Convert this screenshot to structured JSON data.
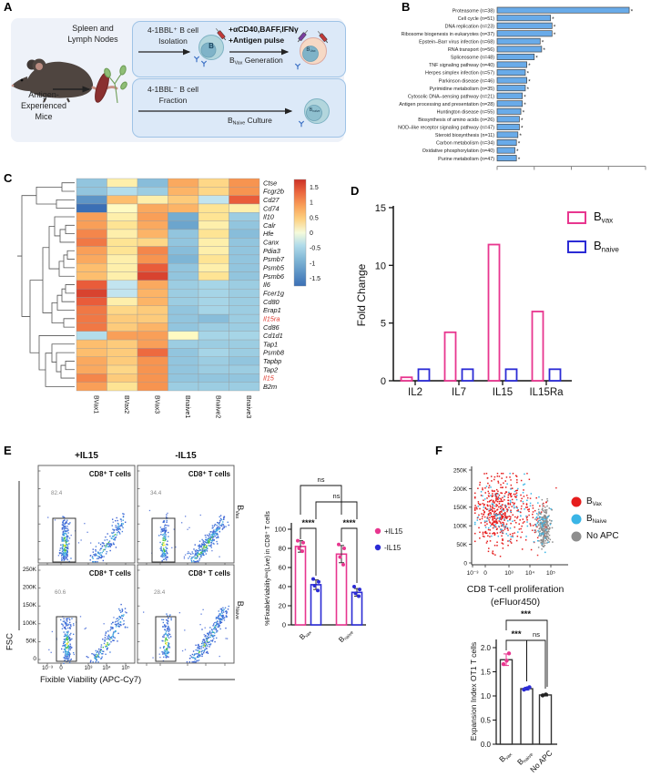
{
  "panel_labels": [
    "A",
    "B",
    "C",
    "D",
    "E",
    "F"
  ],
  "panel_a": {
    "mouse_caption_lines": [
      "Antigen-",
      "Experienced",
      "Mice"
    ],
    "organs_caption_lines": [
      "Spleen and",
      "Lymph Nodes"
    ],
    "top_box": {
      "title_line1": "4-1BBL⁺ B cell",
      "title_line2": "Isolation",
      "b_cell_label": "B",
      "stimulus_line1": "+αCD40,BAFF,IFNγ",
      "stimulus_line2": "+Antigen pulse",
      "generation_base": "B",
      "generation_sub": "Vax",
      "generation_rest": " Generation",
      "bvax_base": "B",
      "bvax_sub": "Vax"
    },
    "bottom_box": {
      "title_line1": "4-1BBL⁻ B cell",
      "title_line2": "Fraction",
      "culture_base": "B",
      "culture_sub": "Naive",
      "culture_rest": " Culture",
      "bnaive_base": "B",
      "bnaive_sub": "naive"
    }
  },
  "chart_data": [
    {
      "id": "panel_b_pathway_enrichment",
      "type": "bar",
      "orientation": "horizontal",
      "categories": [
        "Proteasome (n=38)",
        "Cell cycle (n=51)",
        "DNA replication (n=23)",
        "Ribosome biogenesis in eukaryotes (n=37)",
        "Epstein–Barr virus infection (n=68)",
        "RNA transport (n=56)",
        "Spliceosome (n=48)",
        "TNF signaling pathway (n=40)",
        "Herpes simplex infection (n=57)",
        "Parkinson disease (n=46)",
        "Pyrimidine metabolism (n=35)",
        "Cytosolic DNA–sensing pathway (n=21)",
        "Antigen processing and presentation (n=28)",
        "Huntington disease (n=55)",
        "Biosynthesis of amino acids (n=26)",
        "NOD–like receptor signaling pathway (n=47)",
        "Steroid biosynthesis (n=11)",
        "Carbon metabolism (n=34)",
        "Oxidative phosphorylation (n=40)",
        "Purine metabolism (n=47)"
      ],
      "values": [
        0.89,
        0.36,
        0.37,
        0.37,
        0.29,
        0.3,
        0.25,
        0.2,
        0.19,
        0.2,
        0.19,
        0.17,
        0.17,
        0.16,
        0.15,
        0.15,
        0.14,
        0.13,
        0.12,
        0.13
      ],
      "value_units": "relative bar length (x axis unlabeled in figure)",
      "bar_annotation": "*",
      "bar_color": "#69abe9"
    },
    {
      "id": "panel_c_gene_heatmap",
      "type": "heatmap",
      "columns": [
        "BVax1",
        "BVax2",
        "BVax3",
        "Bnaive1",
        "Bnaive2",
        "Bnaive3"
      ],
      "rows": [
        "Ctse",
        "Fcgr2b",
        "Cd27",
        "Cd74",
        "Il10",
        "Calr",
        "Hfe",
        "Canx",
        "Pdia3",
        "Psmb7",
        "Psmb5",
        "Psmb6",
        "Il6",
        "Fcer1g",
        "Cd80",
        "Erap1",
        "Il15ra",
        "Cd86",
        "Cd1d1",
        "Tap1",
        "Psmb8",
        "Tapbp",
        "Tap2",
        "Il15",
        "B2m"
      ],
      "highlighted_rows": [
        "Il15ra",
        "Il15"
      ],
      "highlight_color": "#e03a2f",
      "values": [
        [
          -0.7,
          0.2,
          -0.8,
          0.8,
          0.4,
          1.0
        ],
        [
          -0.7,
          -0.4,
          -0.6,
          0.7,
          0.4,
          1.0
        ],
        [
          -1.3,
          0.6,
          0.2,
          0.5,
          -0.3,
          1.4
        ],
        [
          -1.8,
          0.1,
          0.8,
          0.7,
          0.3,
          0.2
        ],
        [
          0.9,
          0.2,
          0.9,
          -1.0,
          0.3,
          -0.6
        ],
        [
          0.9,
          0.3,
          0.8,
          -1.1,
          0.2,
          -0.7
        ],
        [
          1.1,
          0.2,
          0.7,
          -0.7,
          0.3,
          -0.8
        ],
        [
          1.2,
          0.3,
          0.4,
          -0.7,
          0.2,
          -0.7
        ],
        [
          0.9,
          0.3,
          1.1,
          -0.8,
          0.2,
          -0.7
        ],
        [
          0.8,
          0.2,
          1.0,
          -0.9,
          0.3,
          -0.7
        ],
        [
          0.6,
          0.2,
          1.4,
          -0.7,
          0.2,
          -0.7
        ],
        [
          0.6,
          0.2,
          1.6,
          -0.7,
          0.3,
          -0.7
        ],
        [
          1.4,
          -0.3,
          0.8,
          -0.6,
          -0.5,
          -0.6
        ],
        [
          1.6,
          -0.3,
          0.7,
          -0.6,
          -0.5,
          -0.6
        ],
        [
          1.4,
          0.2,
          0.7,
          -0.6,
          -0.5,
          -0.6
        ],
        [
          1.2,
          0.4,
          0.5,
          -0.7,
          -0.5,
          -0.6
        ],
        [
          1.2,
          0.5,
          0.5,
          -0.7,
          -0.8,
          -0.6
        ],
        [
          1.2,
          0.5,
          0.7,
          -0.7,
          -0.6,
          -0.6
        ],
        [
          -0.4,
          0.9,
          0.9,
          0.1,
          -0.5,
          -0.5
        ],
        [
          0.6,
          0.5,
          0.9,
          -0.6,
          -0.6,
          -0.6
        ],
        [
          0.6,
          0.5,
          1.3,
          -0.7,
          -0.5,
          -0.6
        ],
        [
          0.8,
          0.5,
          1.0,
          -0.7,
          -0.6,
          -0.7
        ],
        [
          0.8,
          0.4,
          1.0,
          -0.7,
          -0.6,
          -0.6
        ],
        [
          1.1,
          0.5,
          1.0,
          -0.7,
          -0.7,
          -0.7
        ],
        [
          0.9,
          0.3,
          1.0,
          -0.6,
          -0.6,
          -0.6
        ]
      ],
      "colorbar_ticks": [
        "1.5",
        "1",
        "0.5",
        "0",
        "-0.5",
        "-1",
        "-1.5"
      ],
      "scale_range": [
        -1.75,
        1.75
      ]
    },
    {
      "id": "panel_d_fold_change",
      "type": "bar",
      "categories": [
        "IL2",
        "IL7",
        "IL15",
        "IL15Ra"
      ],
      "series": [
        {
          "name_base": "B",
          "name_sub": "vax",
          "color": "#e8368f",
          "values": [
            0.3,
            4.2,
            11.8,
            6.0
          ]
        },
        {
          "name_base": "B",
          "name_sub": "naive",
          "color": "#2b2bd5",
          "values": [
            1.0,
            1.0,
            1.0,
            1.0
          ]
        }
      ],
      "ylabel": "Fold Change",
      "ylim": [
        0,
        15
      ],
      "yticks": [
        0,
        5,
        10,
        15
      ]
    },
    {
      "id": "panel_e_viability_flow",
      "type": "scatter",
      "subtype": "flow-cytometry-pseudocolor",
      "col_titles": [
        "+IL15",
        "-IL15"
      ],
      "row_titles": [
        {
          "base": "B",
          "sub": "Vax"
        },
        {
          "base": "B",
          "sub": "Naive"
        }
      ],
      "plot_label": "CD8⁺ T cells",
      "gate_values": [
        [
          "82.4",
          "34.4"
        ],
        [
          "60.6",
          "28.4"
        ]
      ],
      "xlabel": "Fixible Viability (APC-Cy7)",
      "ylabel": "FSC",
      "yticks": [
        "0",
        "50K",
        "100K",
        "150K",
        "200K",
        "250K"
      ],
      "xticks": [
        "10⁻³",
        "0",
        "10³",
        "10⁴",
        "10⁵"
      ]
    },
    {
      "id": "panel_e_viability_summary",
      "type": "bar",
      "categories": [
        {
          "base": "B",
          "sub": "vax"
        },
        {
          "base": "B",
          "sub": "naive"
        }
      ],
      "series": [
        {
          "name": "+IL15",
          "color": "#e8368f",
          "means": [
            82,
            74
          ],
          "sd": [
            6,
            9
          ],
          "points": [
            [
              88,
              86,
              80,
              77
            ],
            [
              84,
              80,
              71,
              63
            ]
          ]
        },
        {
          "name": "-IL15",
          "color": "#2b2bd5",
          "means": [
            42,
            34
          ],
          "sd": [
            5,
            4
          ],
          "points": [
            [
              48,
              45,
              41,
              36
            ],
            [
              40,
              37,
              33,
              30
            ]
          ]
        }
      ],
      "ylabel_pre": "%FixableViability",
      "ylabel_sup": "low",
      "ylabel_post": "(Live) in CD8⁺ T cells",
      "ylim": [
        0,
        100
      ],
      "yticks": [
        0,
        20,
        40,
        60,
        80,
        100
      ],
      "significance": [
        {
          "label": "****",
          "pair": "Bvax +IL15 vs -IL15"
        },
        {
          "label": "****",
          "pair": "Bnaive +IL15 vs -IL15"
        },
        {
          "label": "ns",
          "pair": "Bvax vs Bnaive (+IL15)"
        },
        {
          "label": "ns",
          "pair": "Bvax vs Bnaive (-IL15)"
        }
      ]
    },
    {
      "id": "panel_f_proliferation_flow",
      "type": "scatter",
      "subtype": "flow-cytometry-overlay",
      "legend": [
        {
          "base": "B",
          "sub": "Vax",
          "color": "#e61d1d"
        },
        {
          "base": "B",
          "sub": "Naive",
          "color": "#3ab5e6"
        },
        {
          "label": "No APC",
          "color": "#8e8e8e"
        }
      ],
      "yticks": [
        "0",
        "50K",
        "100K",
        "150K",
        "200K",
        "250K"
      ],
      "xticks": [
        "10⁻³",
        "0",
        "10³",
        "10⁴",
        "10⁵"
      ],
      "xlabel_line1": "CD8 T-cell proliferation",
      "xlabel_line2": "(eFluor450)"
    },
    {
      "id": "panel_f_expansion_index",
      "type": "bar",
      "categories": [
        {
          "base": "B",
          "sub": "vax"
        },
        {
          "base": "B",
          "sub": "naive"
        },
        {
          "label": "No APC"
        }
      ],
      "values": [
        1.75,
        1.15,
        1.02
      ],
      "errors": [
        0.12,
        0.03,
        0.02
      ],
      "points": [
        [
          1.66,
          1.73,
          1.88
        ],
        [
          1.13,
          1.16,
          1.18
        ],
        [
          1.01,
          1.03
        ]
      ],
      "point_colors": [
        "#e8368f",
        "#2b2bd5",
        "#222222"
      ],
      "ylabel": "Expansion Index OT1 T cells",
      "ylim": [
        0,
        2
      ],
      "yticks": [
        "0.0",
        "0.5",
        "1.0",
        "1.5",
        "2.0"
      ],
      "significance": [
        {
          "label": "***",
          "pair": "Bvax vs Bnaive"
        },
        {
          "label": "ns",
          "pair": "Bnaive vs No APC"
        },
        {
          "label": "***",
          "pair": "Bvax vs No APC"
        }
      ]
    }
  ]
}
